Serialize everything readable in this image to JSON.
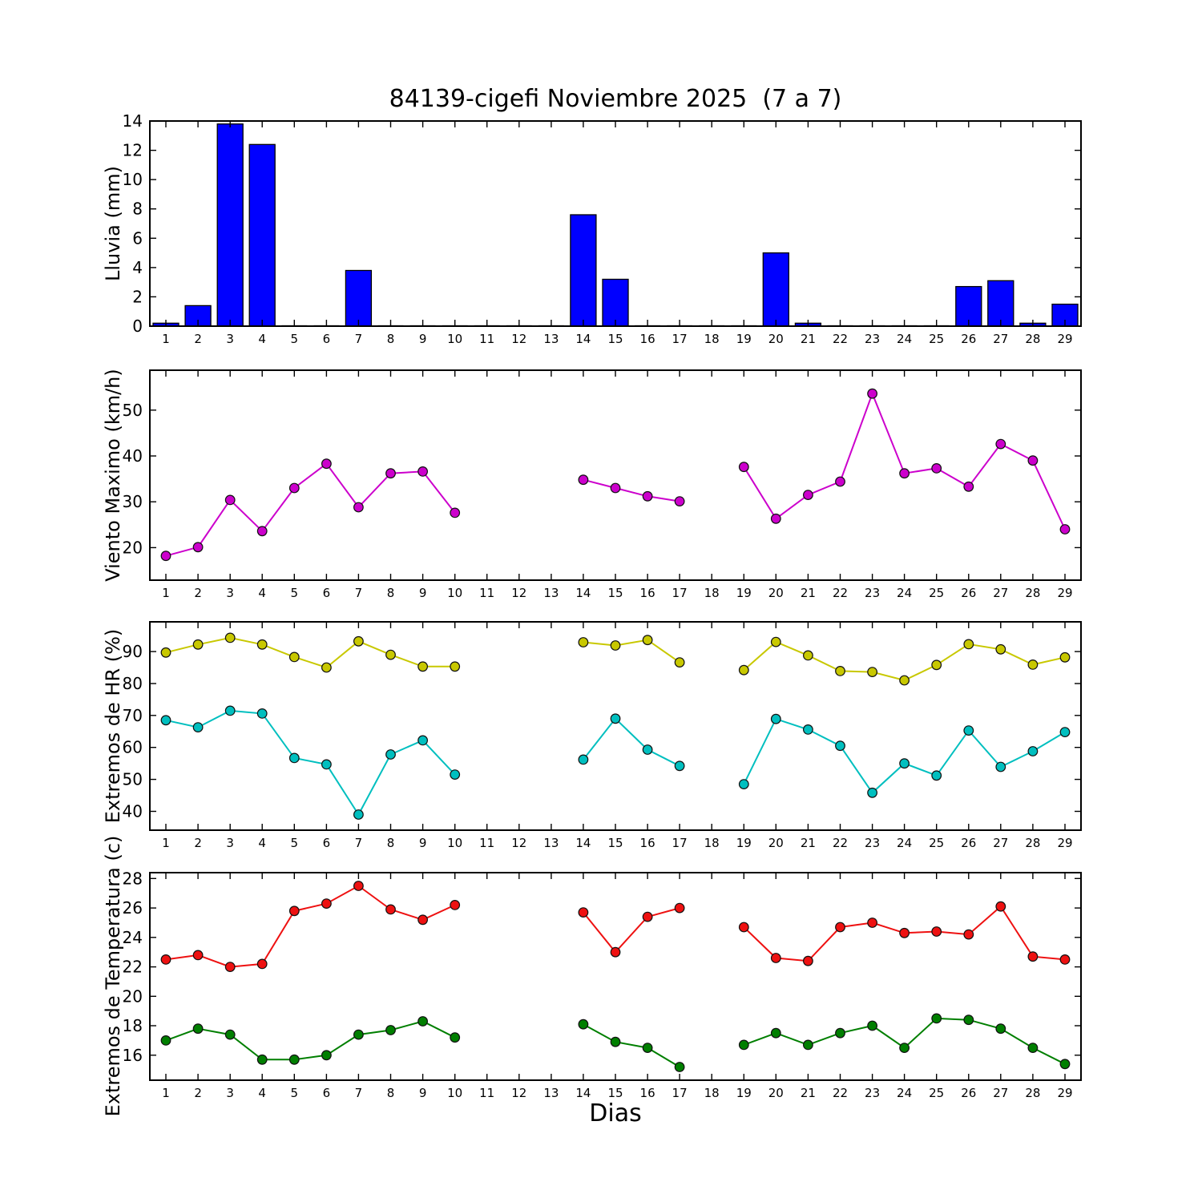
{
  "title": "84139-cigefi Noviembre 2025  (7 a 7)",
  "xlabel": "Dias",
  "x": [
    1,
    2,
    3,
    4,
    5,
    6,
    7,
    8,
    9,
    10,
    11,
    12,
    13,
    14,
    15,
    16,
    17,
    18,
    19,
    20,
    21,
    22,
    23,
    24,
    25,
    26,
    27,
    28,
    29
  ],
  "xlim": [
    0.5,
    29.5
  ],
  "missing_days": [
    11,
    12,
    13,
    18
  ],
  "frame_color": "#000000",
  "chart_data": [
    {
      "id": "lluvia",
      "type": "bar",
      "ylabel": "Lluvia (mm)",
      "color": "#0000ff",
      "ylim": [
        0,
        14
      ],
      "yticks": [
        0,
        2,
        4,
        6,
        8,
        10,
        12,
        14
      ],
      "values": [
        0.2,
        1.4,
        13.8,
        12.4,
        0,
        0,
        3.8,
        0,
        0,
        0,
        0,
        0,
        0,
        7.6,
        3.2,
        0,
        0,
        0,
        0,
        5.0,
        0.2,
        0,
        0,
        0,
        0,
        2.7,
        3.1,
        0.2,
        1.5
      ]
    },
    {
      "id": "viento",
      "type": "line",
      "ylabel": "Viento Maximo (km/h)",
      "ylim": [
        12.9,
        58.7
      ],
      "yticks": [
        20,
        30,
        40,
        50
      ],
      "series": [
        {
          "name": "viento-maximo",
          "color": "#cc00cc",
          "values": [
            18.2,
            20.1,
            30.4,
            23.6,
            33.0,
            38.3,
            28.8,
            36.2,
            36.6,
            27.6,
            null,
            null,
            null,
            34.8,
            33.0,
            31.2,
            30.1,
            null,
            37.6,
            26.3,
            31.5,
            34.4,
            53.6,
            36.2,
            37.3,
            33.3,
            42.6,
            39.0,
            24.0
          ]
        }
      ]
    },
    {
      "id": "hr",
      "type": "line",
      "ylabel": "Extremos de HR (%)",
      "ylim": [
        34.1,
        99.3
      ],
      "yticks": [
        40,
        50,
        60,
        70,
        80,
        90
      ],
      "series": [
        {
          "name": "hr-maxima",
          "color": "#c8c800",
          "values": [
            89.7,
            92.2,
            94.3,
            92.2,
            88.3,
            85.0,
            93.2,
            89.0,
            85.3,
            85.3,
            null,
            null,
            null,
            92.9,
            91.9,
            93.6,
            86.6,
            null,
            84.2,
            93.0,
            88.8,
            83.9,
            83.6,
            81.0,
            85.8,
            92.3,
            90.7,
            85.9,
            88.2
          ]
        },
        {
          "name": "hr-minima",
          "color": "#00bfbf",
          "values": [
            68.5,
            66.3,
            71.5,
            70.6,
            56.7,
            54.7,
            39.0,
            57.8,
            62.2,
            51.5,
            null,
            null,
            null,
            56.2,
            69.0,
            59.3,
            54.2,
            null,
            48.5,
            68.9,
            65.6,
            60.5,
            45.8,
            55.0,
            51.2,
            65.3,
            53.9,
            58.8,
            64.8
          ]
        }
      ]
    },
    {
      "id": "temperatura",
      "type": "line",
      "ylabel": "Extremos de Temperatura (c)",
      "ylim": [
        14.3,
        28.4
      ],
      "yticks": [
        16,
        18,
        20,
        22,
        24,
        26,
        28
      ],
      "series": [
        {
          "name": "temperatura-maxima",
          "color": "#ee1111",
          "values": [
            22.5,
            22.8,
            22.0,
            22.2,
            25.8,
            26.3,
            27.5,
            25.9,
            25.2,
            26.2,
            null,
            null,
            null,
            25.7,
            23.0,
            25.4,
            26.0,
            null,
            24.7,
            22.6,
            22.4,
            24.7,
            25.0,
            24.3,
            24.4,
            24.2,
            26.1,
            22.7,
            22.5
          ]
        },
        {
          "name": "temperatura-minima",
          "color": "#007f00",
          "values": [
            17.0,
            17.8,
            17.4,
            15.7,
            15.7,
            16.0,
            17.4,
            17.7,
            18.3,
            17.2,
            null,
            null,
            null,
            18.1,
            16.9,
            16.5,
            15.2,
            null,
            16.7,
            17.5,
            16.7,
            17.5,
            18.0,
            16.5,
            18.5,
            18.4,
            17.8,
            16.5,
            15.4
          ]
        }
      ]
    }
  ]
}
